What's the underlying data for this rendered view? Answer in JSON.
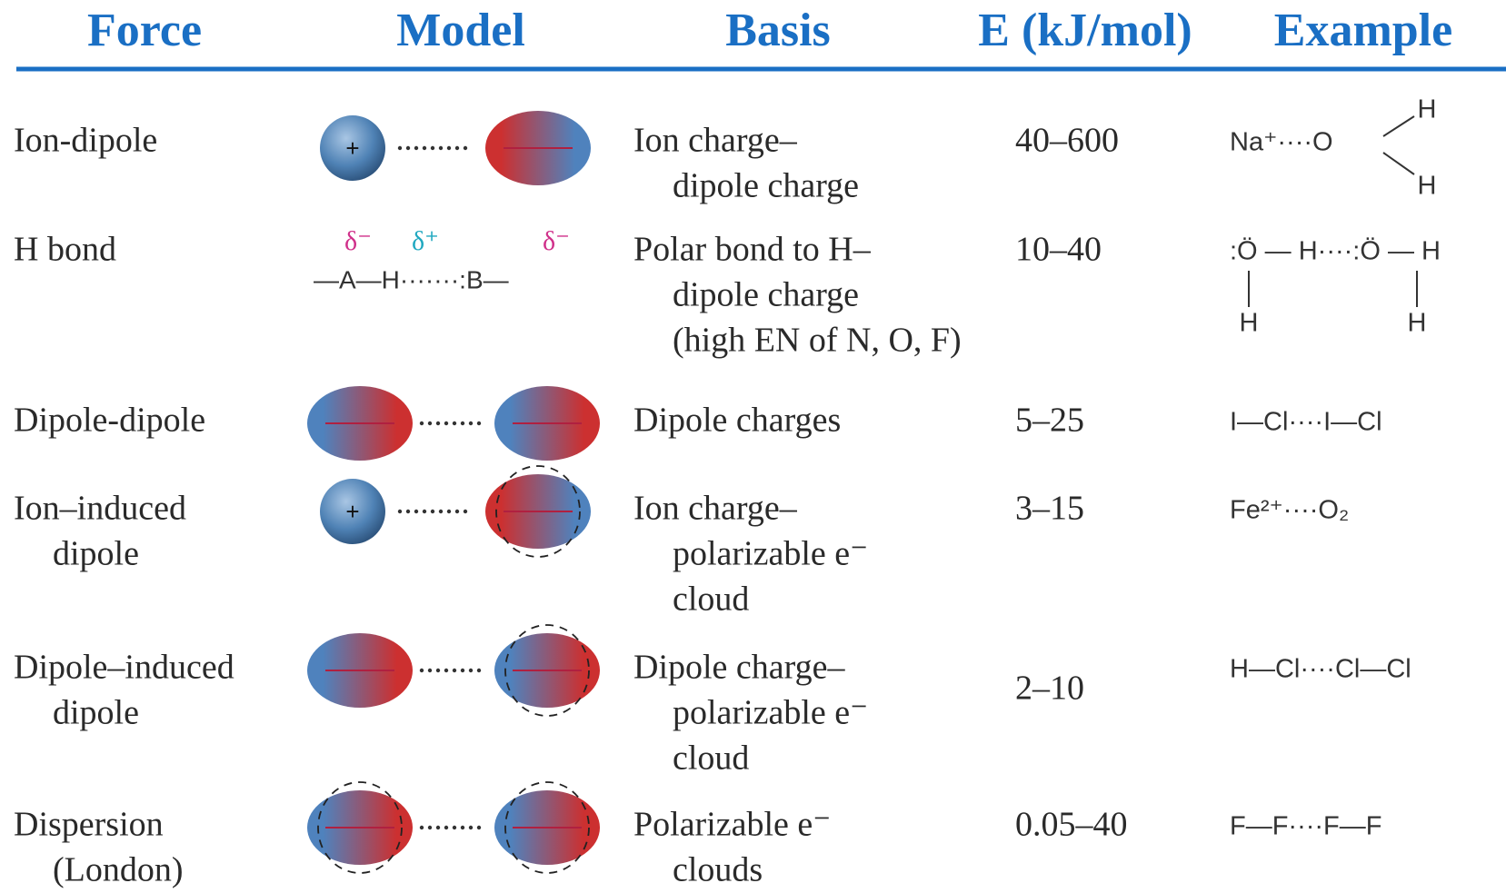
{
  "header": {
    "columns": [
      "Force",
      "Model",
      "Basis",
      "E (kJ/mol)",
      "Example"
    ]
  },
  "rows": [
    {
      "force": [
        "Ion-dipole"
      ],
      "model": {
        "ion": "+"
      },
      "basis": [
        "Ion charge–",
        "dipole charge"
      ],
      "energy": "40–600",
      "example": {
        "formula": "Na⁺····O",
        "top": "H",
        "bottom": "H"
      }
    },
    {
      "force": [
        "H bond"
      ],
      "model": {
        "charges": [
          "δ⁻",
          "δ⁺",
          "δ⁻"
        ],
        "bond": "—A—H·······:B—"
      },
      "basis": [
        "Polar bond to H–",
        "dipole charge",
        "(high EN of N, O, F)"
      ],
      "energy": "10–40",
      "example": {
        "formula": ":Ö — H····:Ö — H",
        "below": [
          "H",
          "H"
        ]
      }
    },
    {
      "force": [
        "Dipole-dipole"
      ],
      "basis": [
        "Dipole charges"
      ],
      "energy": "5–25",
      "example": {
        "formula": "I—Cl····I—Cl"
      }
    },
    {
      "force": [
        "Ion–induced",
        "dipole"
      ],
      "model": {
        "ion": "+"
      },
      "basis": [
        "Ion charge–",
        "polarizable e⁻",
        "cloud"
      ],
      "energy": "3–15",
      "example": {
        "formula": "Fe²⁺····O₂"
      }
    },
    {
      "force": [
        "Dipole–induced",
        "dipole"
      ],
      "basis": [
        "Dipole charge–",
        "polarizable e⁻",
        "cloud"
      ],
      "energy": "2–10",
      "example": {
        "formula": "H—Cl····Cl—Cl"
      }
    },
    {
      "force": [
        "Dispersion",
        "(London)"
      ],
      "basis": [
        "Polarizable e⁻",
        "clouds"
      ],
      "energy": "0.05–40",
      "example": {
        "formula": "F—F····F—F"
      }
    }
  ]
}
